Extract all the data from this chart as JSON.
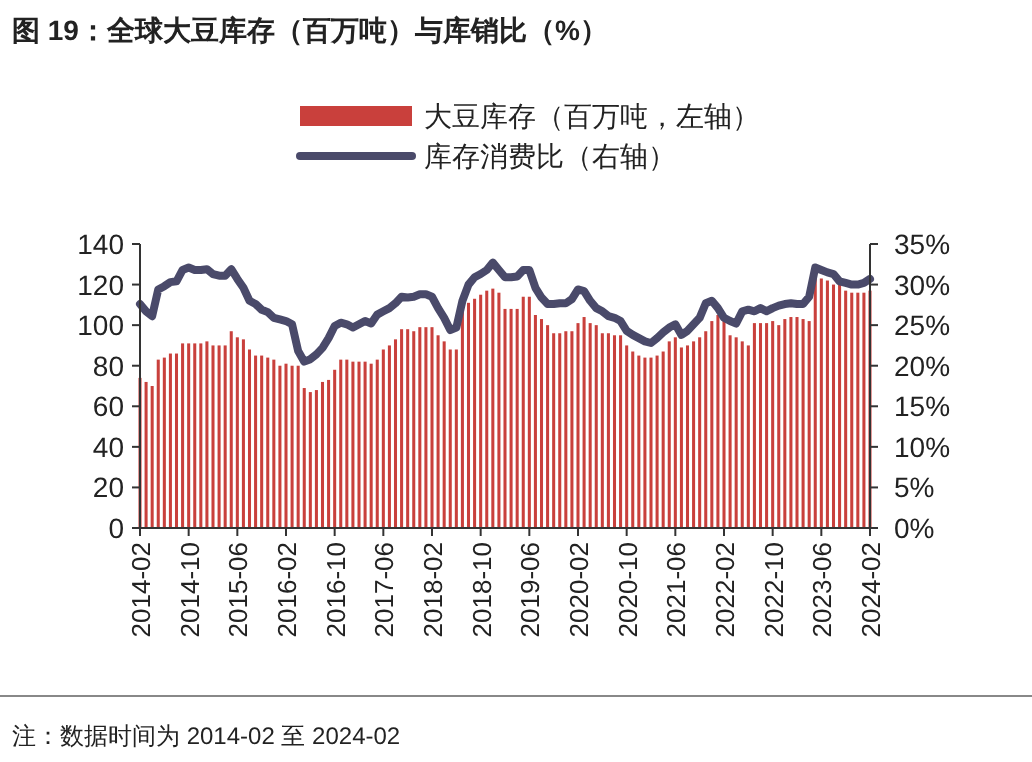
{
  "chart_data": {
    "type": "bar",
    "title": "图 19：全球大豆库存（百万吨）与库销比（%）",
    "annotations": [
      "注：数据时间为 2014-02 至 2024-02"
    ],
    "categories": [
      "2014-02",
      null,
      null,
      null,
      null,
      null,
      null,
      null,
      "2014-10",
      null,
      null,
      null,
      null,
      null,
      null,
      null,
      "2015-06",
      null,
      null,
      null,
      null,
      null,
      null,
      null,
      "2016-02",
      null,
      null,
      null,
      null,
      null,
      null,
      null,
      "2016-10",
      null,
      null,
      null,
      null,
      null,
      null,
      null,
      "2017-06",
      null,
      null,
      null,
      null,
      null,
      null,
      null,
      "2018-02",
      null,
      null,
      null,
      null,
      null,
      null,
      null,
      "2018-10",
      null,
      null,
      null,
      null,
      null,
      null,
      null,
      "2019-06",
      null,
      null,
      null,
      null,
      null,
      null,
      null,
      "2020-02",
      null,
      null,
      null,
      null,
      null,
      null,
      null,
      "2020-10",
      null,
      null,
      null,
      null,
      null,
      null,
      null,
      "2021-06",
      null,
      null,
      null,
      null,
      null,
      null,
      null,
      "2022-02",
      null,
      null,
      null,
      null,
      null,
      null,
      null,
      "2022-10",
      null,
      null,
      null,
      null,
      null,
      null,
      null,
      "2023-06",
      null,
      null,
      null,
      null,
      null,
      null,
      null,
      "2024-02"
    ],
    "series": [
      {
        "name": "大豆库存（百万吨，左轴）",
        "color": "#c9403c",
        "values": [
          74,
          72,
          70,
          83,
          84,
          86,
          86,
          91,
          91,
          91,
          91,
          92,
          90,
          90,
          90,
          97,
          94,
          93,
          88,
          85,
          85,
          84,
          83,
          80,
          81,
          80,
          80,
          69,
          67,
          68,
          72,
          73,
          78,
          83,
          83,
          82,
          82,
          82,
          81,
          83,
          88,
          90,
          93,
          98,
          98,
          97,
          99,
          99,
          99,
          95,
          92,
          88,
          88,
          108,
          111,
          113,
          115,
          117,
          118,
          116,
          108,
          108,
          108,
          114,
          114,
          105,
          103,
          100,
          96,
          96,
          97,
          97,
          101,
          104,
          101,
          100,
          96,
          96,
          95,
          95,
          90,
          87,
          85,
          84,
          84,
          85,
          87,
          92,
          94,
          89,
          90,
          92,
          94,
          97,
          102,
          105,
          104,
          95,
          94,
          92,
          90,
          101,
          101,
          101,
          102,
          100,
          103,
          104,
          104,
          103,
          102,
          125,
          123,
          122,
          120,
          120,
          117,
          116,
          116,
          116,
          117
        ]
      },
      {
        "name": "库存消费比（右轴）",
        "type": "line",
        "axis": "y2",
        "color": "#4a4a6a",
        "values": [
          27.6,
          26.7,
          26.1,
          29.4,
          29.8,
          30.3,
          30.4,
          31.8,
          32.1,
          31.8,
          31.8,
          31.9,
          31.3,
          31.1,
          31.1,
          31.9,
          30.7,
          29.6,
          28.0,
          27.6,
          26.9,
          26.6,
          25.9,
          25.7,
          25.5,
          25.1,
          21.8,
          20.5,
          20.8,
          21.4,
          22.2,
          23.4,
          24.9,
          25.3,
          25.1,
          24.7,
          25.1,
          25.5,
          25.2,
          26.3,
          26.7,
          27.1,
          27.7,
          28.5,
          28.4,
          28.5,
          28.8,
          28.8,
          28.5,
          27.1,
          25.9,
          24.4,
          24.7,
          28.0,
          30.0,
          30.9,
          31.3,
          31.8,
          32.7,
          31.8,
          30.9,
          30.9,
          31.0,
          31.8,
          31.8,
          29.6,
          28.4,
          27.6,
          27.6,
          27.7,
          27.7,
          28.2,
          29.4,
          29.2,
          28.0,
          27.1,
          26.7,
          26.1,
          25.9,
          25.5,
          24.3,
          23.8,
          23.4,
          23.0,
          22.8,
          23.4,
          24.1,
          24.7,
          25.1,
          23.8,
          24.3,
          25.1,
          25.9,
          27.7,
          28.0,
          27.1,
          25.9,
          25.5,
          25.2,
          26.7,
          26.9,
          26.7,
          27.1,
          26.7,
          27.1,
          27.4,
          27.6,
          27.7,
          27.6,
          27.6,
          28.5,
          32.1,
          31.8,
          31.5,
          31.3,
          30.4,
          30.2,
          30.0,
          30.0,
          30.2,
          30.7
        ]
      }
    ],
    "ylim": [
      0,
      140
    ],
    "yticks": [
      0,
      20,
      40,
      60,
      80,
      100,
      120,
      140
    ],
    "y2lim": [
      0,
      35
    ],
    "y2ticks": [
      {
        "value": 0,
        "label": "0%"
      },
      {
        "value": 5,
        "label": "5%"
      },
      {
        "value": 10,
        "label": "10%"
      },
      {
        "value": 15,
        "label": "15%"
      },
      {
        "value": 20,
        "label": "20%"
      },
      {
        "value": 25,
        "label": "25%"
      },
      {
        "value": 30,
        "label": "30%"
      },
      {
        "value": 35,
        "label": "35%"
      }
    ],
    "legend": "top",
    "grid": false
  }
}
